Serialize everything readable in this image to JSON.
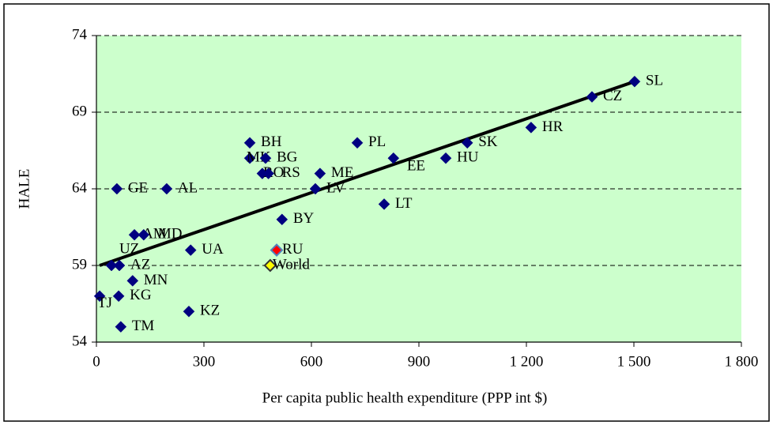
{
  "chart_data": {
    "type": "scatter",
    "x_label": "Per capita public health expenditure (PPP int $)",
    "y_label": "HALE",
    "xlim": [
      0,
      1800
    ],
    "ylim": [
      54,
      74
    ],
    "xticks": [
      0,
      300,
      600,
      900,
      {
        "value": 1200,
        "label": "1 200"
      },
      {
        "value": 1500,
        "label": "1 500"
      },
      {
        "value": 1800,
        "label": "1 800"
      }
    ],
    "yticks": [
      54,
      59,
      64,
      69,
      74
    ],
    "grid": true,
    "background_color": "#ccffcc",
    "labels": [
      "SL",
      "CZ",
      "HR",
      "SK",
      "HU",
      "PL",
      "EE",
      "LT",
      "ME",
      "LV",
      "BY",
      "BH",
      "MK",
      "BG",
      "RO",
      "RS",
      "GE",
      "AL",
      "AM",
      "MD",
      "UA",
      "RU",
      "World",
      "UZ",
      "AZ",
      "MN",
      "KG",
      "TJ",
      "TM",
      "KZ"
    ],
    "x": [
      1502,
      1383,
      1213,
      1035,
      975,
      728,
      829,
      803,
      624,
      611,
      518,
      428,
      428,
      472,
      463,
      480,
      57,
      196,
      106,
      132,
      263,
      503,
      485,
      42,
      64,
      101,
      62,
      9,
      68,
      258
    ],
    "y": [
      71,
      70,
      68,
      67,
      66,
      67,
      66,
      63,
      65,
      64,
      62,
      67,
      66,
      66,
      65,
      65,
      64,
      64,
      61,
      61,
      60,
      60,
      59,
      59,
      59,
      58,
      57,
      57,
      55,
      56
    ],
    "point_colors": [
      "#000080",
      "#000080",
      "#000080",
      "#000080",
      "#000080",
      "#000080",
      "#000080",
      "#000080",
      "#000080",
      "#000080",
      "#000080",
      "#000080",
      "#000080",
      "#000080",
      "#000080",
      "#000080",
      "#000080",
      "#000080",
      "#000080",
      "#000080",
      "#000080",
      "#ff0000",
      "#ffff00",
      "#000080",
      "#000080",
      "#000080",
      "#000080",
      "#000080",
      "#000080",
      "#000080"
    ],
    "trendline": {
      "x": [
        9,
        1502
      ],
      "y": [
        59,
        71
      ],
      "color": "#000000"
    }
  }
}
